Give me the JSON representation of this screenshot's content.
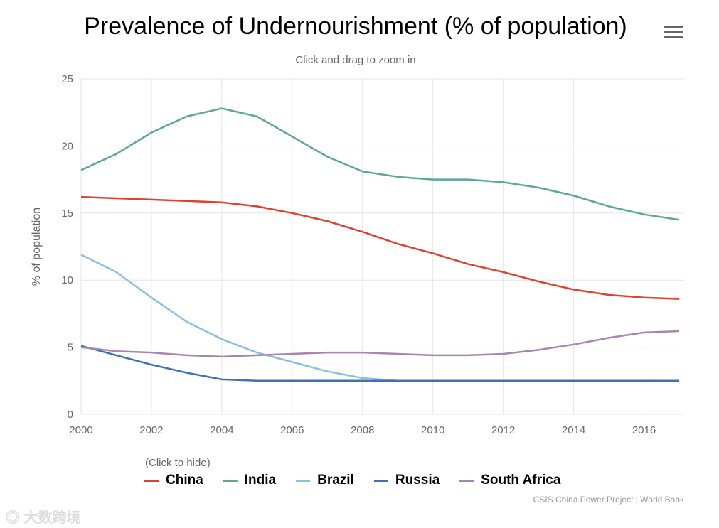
{
  "chart_data": {
    "type": "line",
    "title": "Prevalence of Undernourishment (% of population)",
    "subtitle": "Click and drag to zoom in",
    "xlabel": "",
    "ylabel": "% of population",
    "x": [
      2000,
      2001,
      2002,
      2003,
      2004,
      2005,
      2006,
      2007,
      2008,
      2009,
      2010,
      2011,
      2012,
      2013,
      2014,
      2015,
      2016,
      2017
    ],
    "xlim": [
      2000,
      2017
    ],
    "ylim": [
      0,
      25
    ],
    "xticks": [
      "2000",
      "2002",
      "2004",
      "2006",
      "2008",
      "2010",
      "2012",
      "2014",
      "2016"
    ],
    "yticks": [
      "0",
      "5",
      "10",
      "15",
      "20",
      "25"
    ],
    "grid": true,
    "legend_position": "bottom",
    "series": [
      {
        "name": "China",
        "color": "#e0402f",
        "values": [
          16.2,
          16.1,
          16.0,
          15.9,
          15.8,
          15.5,
          15.0,
          14.4,
          13.6,
          12.7,
          12.0,
          11.2,
          10.6,
          9.9,
          9.3,
          8.9,
          8.7,
          8.6
        ]
      },
      {
        "name": "India",
        "color": "#5aa89a",
        "values": [
          18.2,
          19.4,
          21.0,
          22.2,
          22.8,
          22.2,
          20.7,
          19.2,
          18.1,
          17.7,
          17.5,
          17.5,
          17.3,
          16.9,
          16.3,
          15.5,
          14.9,
          14.5
        ]
      },
      {
        "name": "Brazil",
        "color": "#8cbfde",
        "values": [
          11.9,
          10.6,
          8.7,
          6.9,
          5.6,
          4.6,
          3.9,
          3.2,
          2.7,
          2.5,
          2.5,
          2.5,
          2.5,
          2.5,
          2.5,
          2.5,
          2.5,
          2.5
        ]
      },
      {
        "name": "Russia",
        "color": "#3f72b5",
        "values": [
          5.1,
          4.4,
          3.7,
          3.1,
          2.6,
          2.5,
          2.5,
          2.5,
          2.5,
          2.5,
          2.5,
          2.5,
          2.5,
          2.5,
          2.5,
          2.5,
          2.5,
          2.5
        ]
      },
      {
        "name": "South Africa",
        "color": "#a686b0",
        "values": [
          5.0,
          4.7,
          4.6,
          4.4,
          4.3,
          4.4,
          4.5,
          4.6,
          4.6,
          4.5,
          4.4,
          4.4,
          4.5,
          4.8,
          5.2,
          5.7,
          6.1,
          6.2
        ]
      }
    ]
  },
  "legend_hint": "(Click to hide)",
  "credit": "CSIS China Power Project | World Bank",
  "watermark": "大数跨境"
}
